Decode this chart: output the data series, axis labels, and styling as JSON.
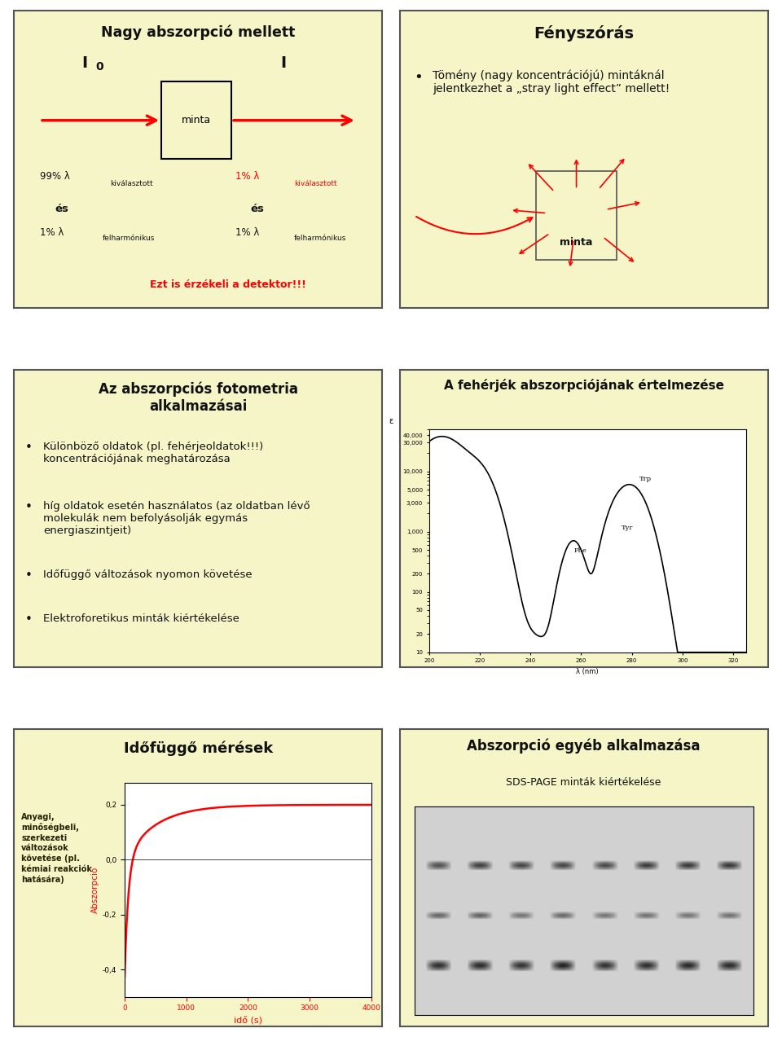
{
  "bg_color": "#ffffff",
  "panel_bg": "#f5f5c8",
  "border_color": "#555555",
  "panel1": {
    "title": "Nagy abszorpció mellett",
    "bottom_text": "Ezt is érzékeli a detektor!!!"
  },
  "panel2": {
    "title": "Fényszórás",
    "bullet1": "Tömény (nagy koncentrációjú) mintáknál\njelentkezhet a „stray light effect” mellett!"
  },
  "panel3": {
    "title": "Az abszorpciós fotometria\nalkalmazásai",
    "bullet1": "Különböző oldatok (pl. fehérjeoldatok!!!)\nkoncentrációjának meghatározása",
    "bullet2": "híg oldatok esetén használatos (az oldatban lévő\nmolekulák nem befolyásolják egymás\nenergiaszintjeit)",
    "bullet3": "Időfüggő változások nyomon követése",
    "bullet4": "Elektroforetikus minták kiértékelése"
  },
  "panel4": {
    "title": "A fehérjék abszorpciójának értelmezése"
  },
  "panel5": {
    "title": "Időfüggő mérések",
    "ylabel": "Abszorpció",
    "xlabel": "idő (s)",
    "side_text": "Anyagi,\nminőségbeli,\nszerkezeti\nváltozások\nkövetése (pl.\nkémiai reakciók\nhatására)"
  },
  "panel6": {
    "title": "Abszorpció egyéb alkalmazása",
    "subtitle": "SDS-PAGE minták kiértékelése"
  }
}
